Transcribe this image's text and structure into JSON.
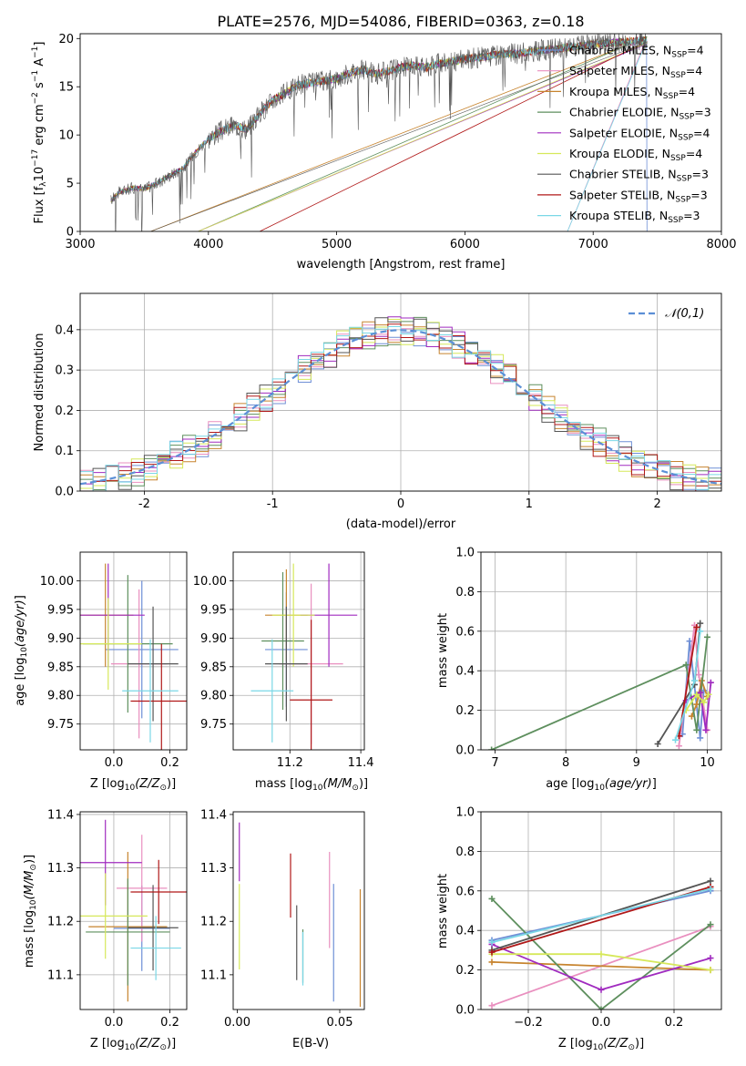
{
  "figure": {
    "title": "PLATE=2576, MJD=54086, FIBERID=0363, z=0.18"
  },
  "chart_data": [
    {
      "id": "spectrum",
      "type": "line",
      "xlabel": "wavelength [Angstrom, rest frame]",
      "ylabel": "Flux [f_λ 10^-17 erg cm^-2 s^-1 A^-1]",
      "xlim": [
        3000,
        8000
      ],
      "ylim": [
        0,
        20.5
      ],
      "xticks": [
        3000,
        4000,
        5000,
        6000,
        7000,
        8000
      ],
      "yticks": [
        0,
        5,
        10,
        15,
        20
      ],
      "grid": false,
      "legend_position": "right",
      "data_range_x": [
        3240,
        7420
      ],
      "curve": {
        "x": [
          3240,
          3300,
          3400,
          3500,
          3600,
          3700,
          3800,
          3900,
          4000,
          4100,
          4200,
          4300,
          4400,
          4500,
          4600,
          4700,
          4800,
          4900,
          5000,
          5100,
          5200,
          5300,
          5400,
          5500,
          5600,
          5700,
          5800,
          5900,
          6000,
          6100,
          6200,
          6300,
          6400,
          6500,
          6600,
          6700,
          6800,
          6900,
          7000,
          7100,
          7200,
          7300,
          7400
        ],
        "y": [
          3.2,
          4.0,
          4.5,
          4.4,
          5.0,
          5.8,
          6.5,
          8.2,
          9.6,
          10.4,
          11.0,
          10.6,
          12.2,
          13.6,
          14.3,
          15.2,
          15.4,
          15.6,
          15.8,
          16.4,
          16.8,
          16.3,
          16.6,
          17.0,
          17.2,
          17.0,
          17.4,
          17.6,
          17.9,
          18.0,
          18.2,
          18.4,
          18.4,
          18.6,
          18.8,
          18.9,
          19.1,
          19.2,
          19.4,
          19.5,
          19.6,
          19.7,
          19.8
        ]
      },
      "series": [
        {
          "name": "Chabrier MILES, N_SSP=4",
          "color": "#6f8fd6",
          "drop": [
            7420,
            0
          ]
        },
        {
          "name": "Salpeter MILES, N_SSP=4",
          "color": "#e98fbf",
          "drop": [
            6800,
            0
          ]
        },
        {
          "name": "Kroupa MILES, N_SSP=4",
          "color": "#c7842e",
          "drop": [
            3550,
            0
          ]
        },
        {
          "name": "Chabrier ELODIE, N_SSP=3",
          "color": "#5e8f5e",
          "drop": [
            3920,
            0
          ]
        },
        {
          "name": "Salpeter ELODIE, N_SSP=4",
          "color": "#a02bbf",
          "drop": [
            3920,
            0
          ]
        },
        {
          "name": "Kroupa ELODIE, N_SSP=4",
          "color": "#d6e85a",
          "drop": [
            3920,
            0
          ]
        },
        {
          "name": "Chabrier STELIB, N_SSP=3",
          "color": "#555555",
          "drop": [
            3550,
            0
          ]
        },
        {
          "name": "Salpeter STELIB, N_SSP=3",
          "color": "#b01818",
          "drop": [
            4400,
            0
          ]
        },
        {
          "name": "Kroupa STELIB, N_SSP=3",
          "color": "#7ad7e6",
          "drop": [
            6800,
            0
          ]
        }
      ]
    },
    {
      "id": "residuals",
      "type": "histogram",
      "xlabel": "(data-model)/error",
      "ylabel": "Normed distribution",
      "xlim": [
        -2.5,
        2.5
      ],
      "ylim": [
        0,
        0.49
      ],
      "xticks": [
        -2,
        -1,
        0,
        1,
        2
      ],
      "yticks": [
        0.0,
        0.1,
        0.2,
        0.3,
        0.4
      ],
      "grid": true,
      "legend_position": "top-right",
      "bins_from": -2.5,
      "bin_width": 0.1,
      "reference": {
        "name": "𝒩(0,1)",
        "mu": 0,
        "sigma": 1,
        "color": "#5b8fd6"
      },
      "series": [
        {
          "color": "#6f8fd6",
          "seed": 1
        },
        {
          "color": "#e98fbf",
          "seed": 2
        },
        {
          "color": "#c7842e",
          "seed": 3
        },
        {
          "color": "#5e8f5e",
          "seed": 4
        },
        {
          "color": "#a02bbf",
          "seed": 5
        },
        {
          "color": "#d6e85a",
          "seed": 6
        },
        {
          "color": "#555555",
          "seed": 7
        },
        {
          "color": "#b01818",
          "seed": 8
        },
        {
          "color": "#7ad7e6",
          "seed": 9
        }
      ]
    },
    {
      "id": "age-vs-Z",
      "type": "scatter",
      "xlabel": "Z [log10(Z/Z⊙)]",
      "ylabel": "age  [log10(age/yr)]",
      "xlim": [
        -0.12,
        0.26
      ],
      "ylim": [
        9.705,
        10.05
      ],
      "xticks": [
        0.0,
        0.2
      ],
      "xticklabels": [
        "0.0",
        "0.2"
      ],
      "yticks": [
        9.75,
        9.8,
        9.85,
        9.9,
        9.95,
        10.0
      ],
      "yticklabels": [
        "9.75",
        "9.80",
        "9.85",
        "9.90",
        "9.95",
        "10.00"
      ],
      "grid": true,
      "points": [
        {
          "x": 0.1,
          "y": 9.88,
          "xerr": 0.13,
          "yerr": 0.12,
          "color": "#6f8fd6"
        },
        {
          "x": 0.09,
          "y": 9.855,
          "xerr": 0.1,
          "yerr": 0.13,
          "color": "#e98fbf"
        },
        {
          "x": -0.03,
          "y": 9.94,
          "xerr": 0.1,
          "yerr": 0.09,
          "color": "#c7842e"
        },
        {
          "x": 0.05,
          "y": 9.89,
          "xerr": 0.16,
          "yerr": 0.12,
          "color": "#5e8f5e"
        },
        {
          "x": -0.02,
          "y": 9.94,
          "xerr": 0.13,
          "yerr": 0.09,
          "color": "#a02bbf"
        },
        {
          "x": -0.02,
          "y": 9.89,
          "xerr": 0.12,
          "yerr": 0.08,
          "color": "#d6e85a"
        },
        {
          "x": 0.14,
          "y": 9.855,
          "xerr": 0.09,
          "yerr": 0.1,
          "color": "#555555"
        },
        {
          "x": 0.17,
          "y": 9.79,
          "xerr": 0.11,
          "yerr": 0.1,
          "color": "#b01818"
        },
        {
          "x": 0.13,
          "y": 9.808,
          "xerr": 0.1,
          "yerr": 0.09,
          "color": "#7ad7e6"
        }
      ]
    },
    {
      "id": "age-vs-mass",
      "type": "scatter",
      "xlabel": "mass [log10(M/M⊙)]",
      "ylabel": "",
      "xlim": [
        11.04,
        11.41
      ],
      "ylim": [
        9.705,
        10.05
      ],
      "xticks": [
        11.2,
        11.4
      ],
      "xticklabels": [
        "11.2",
        "11.4"
      ],
      "yticks": [
        9.75,
        9.8,
        9.85,
        9.9,
        9.95,
        10.0
      ],
      "yticklabels": [
        "9.75",
        "9.80",
        "9.85",
        "9.90",
        "9.95",
        "10.00"
      ],
      "grid": true,
      "points": [
        {
          "x": 11.19,
          "y": 9.88,
          "xerr": 0.06,
          "yerr": 0.1,
          "color": "#6f8fd6"
        },
        {
          "x": 11.26,
          "y": 9.855,
          "xerr": 0.09,
          "yerr": 0.14,
          "color": "#e98fbf"
        },
        {
          "x": 11.19,
          "y": 9.94,
          "xerr": 0.06,
          "yerr": 0.08,
          "color": "#c7842e"
        },
        {
          "x": 11.18,
          "y": 9.895,
          "xerr": 0.06,
          "yerr": 0.12,
          "color": "#5e8f5e"
        },
        {
          "x": 11.31,
          "y": 9.94,
          "xerr": 0.08,
          "yerr": 0.09,
          "color": "#a02bbf"
        },
        {
          "x": 11.21,
          "y": 9.94,
          "xerr": 0.06,
          "yerr": 0.09,
          "color": "#d6e85a"
        },
        {
          "x": 11.19,
          "y": 9.855,
          "xerr": 0.06,
          "yerr": 0.1,
          "color": "#555555"
        },
        {
          "x": 11.26,
          "y": 9.792,
          "xerr": 0.06,
          "yerr": 0.14,
          "color": "#b01818"
        },
        {
          "x": 11.15,
          "y": 9.808,
          "xerr": 0.06,
          "yerr": 0.09,
          "color": "#7ad7e6"
        }
      ]
    },
    {
      "id": "weight-vs-age",
      "type": "line",
      "xlabel": "age  [log10(age/yr)]",
      "ylabel": "mass weight",
      "xlim": [
        6.8,
        10.2
      ],
      "ylim": [
        0,
        1.0
      ],
      "xticks": [
        7,
        8,
        9,
        10
      ],
      "xticklabels": [
        "7",
        "8",
        "9",
        "10"
      ],
      "yticks": [
        0.0,
        0.2,
        0.4,
        0.6,
        0.8,
        1.0
      ],
      "yticklabels": [
        "0.0",
        "0.2",
        "0.4",
        "0.6",
        "0.8",
        "1.0"
      ],
      "grid": true,
      "series": [
        {
          "color": "#6f8fd6",
          "x": [
            9.65,
            9.75,
            9.9,
            9.95
          ],
          "y": [
            0.08,
            0.55,
            0.06,
            0.3
          ]
        },
        {
          "color": "#e98fbf",
          "x": [
            9.6,
            9.82,
            9.88,
            10.0
          ],
          "y": [
            0.02,
            0.63,
            0.38,
            0.1
          ]
        },
        {
          "color": "#c7842e",
          "x": [
            9.78,
            9.85,
            9.92,
            10.0
          ],
          "y": [
            0.17,
            0.23,
            0.35,
            0.27
          ]
        },
        {
          "color": "#5e8f5e",
          "x": [
            6.95,
            9.7,
            9.85,
            10.0
          ],
          "y": [
            0.0,
            0.43,
            0.1,
            0.57
          ]
        },
        {
          "color": "#a02bbf",
          "x": [
            9.7,
            9.9,
            9.98,
            10.05
          ],
          "y": [
            0.25,
            0.29,
            0.1,
            0.34
          ]
        },
        {
          "color": "#d6e85a",
          "x": [
            9.7,
            9.85,
            9.95,
            10.02
          ],
          "y": [
            0.2,
            0.28,
            0.24,
            0.28
          ]
        },
        {
          "color": "#555555",
          "x": [
            9.3,
            9.82,
            9.9
          ],
          "y": [
            0.03,
            0.33,
            0.64
          ]
        },
        {
          "color": "#b01818",
          "x": [
            9.6,
            9.85
          ],
          "y": [
            0.07,
            0.62
          ]
        },
        {
          "color": "#7ad7e6",
          "x": [
            9.55,
            9.82,
            9.9
          ],
          "y": [
            0.05,
            0.35,
            0.6
          ]
        }
      ]
    },
    {
      "id": "mass-vs-Z",
      "type": "scatter",
      "xlabel": "Z [log10(Z/Z⊙)]",
      "ylabel": "mass [log10(M/M⊙)]",
      "xlim": [
        -0.12,
        0.26
      ],
      "ylim": [
        11.035,
        11.405
      ],
      "xticks": [
        0.0,
        0.2
      ],
      "xticklabels": [
        "0.0",
        "0.2"
      ],
      "yticks": [
        11.1,
        11.2,
        11.3,
        11.4
      ],
      "yticklabels": [
        "11.1",
        "11.2",
        "11.3",
        "11.4"
      ],
      "grid": true,
      "points": [
        {
          "x": 0.1,
          "y": 11.187,
          "xerr": 0.1,
          "yerr": 0.08,
          "color": "#6f8fd6"
        },
        {
          "x": 0.1,
          "y": 11.262,
          "xerr": 0.09,
          "yerr": 0.1,
          "color": "#e98fbf"
        },
        {
          "x": 0.05,
          "y": 11.19,
          "xerr": 0.14,
          "yerr": 0.14,
          "color": "#c7842e"
        },
        {
          "x": 0.05,
          "y": 11.18,
          "xerr": 0.15,
          "yerr": 0.1,
          "color": "#5e8f5e"
        },
        {
          "x": -0.03,
          "y": 11.31,
          "xerr": 0.13,
          "yerr": 0.08,
          "color": "#a02bbf"
        },
        {
          "x": -0.03,
          "y": 11.21,
          "xerr": 0.15,
          "yerr": 0.08,
          "color": "#d6e85a"
        },
        {
          "x": 0.14,
          "y": 11.188,
          "xerr": 0.09,
          "yerr": 0.08,
          "color": "#555555"
        },
        {
          "x": 0.16,
          "y": 11.255,
          "xerr": 0.1,
          "yerr": 0.06,
          "color": "#b01818"
        },
        {
          "x": 0.15,
          "y": 11.15,
          "xerr": 0.09,
          "yerr": 0.06,
          "color": "#7ad7e6"
        }
      ]
    },
    {
      "id": "mass-vs-EBV",
      "type": "scatter",
      "xlabel": "E(B-V)",
      "ylabel": "",
      "xlim": [
        -0.002,
        0.062
      ],
      "ylim": [
        11.035,
        11.405
      ],
      "xticks": [
        0.0,
        0.05
      ],
      "xticklabels": [
        "0.00",
        "0.05"
      ],
      "yticks": [
        11.1,
        11.2,
        11.3,
        11.4
      ],
      "yticklabels": [
        "11.1",
        "11.2",
        "11.3",
        "11.4"
      ],
      "grid": false,
      "points": [
        {
          "x": 0.047,
          "y": 11.16,
          "yerr": 0.11,
          "color": "#6f8fd6"
        },
        {
          "x": 0.045,
          "y": 11.24,
          "yerr": 0.09,
          "color": "#e98fbf"
        },
        {
          "x": 0.06,
          "y": 11.15,
          "yerr": 0.11,
          "color": "#c7842e"
        },
        {
          "x": 0.032,
          "y": 11.135,
          "yerr": 0.05,
          "color": "#5e8f5e"
        },
        {
          "x": 0.001,
          "y": 11.33,
          "yerr": 0.055,
          "color": "#a02bbf"
        },
        {
          "x": 0.001,
          "y": 11.19,
          "yerr": 0.08,
          "color": "#d6e85a"
        },
        {
          "x": 0.029,
          "y": 11.16,
          "yerr": 0.07,
          "color": "#555555"
        },
        {
          "x": 0.026,
          "y": 11.267,
          "yerr": 0.06,
          "color": "#b01818"
        },
        {
          "x": 0.032,
          "y": 11.13,
          "yerr": 0.05,
          "color": "#7ad7e6"
        }
      ]
    },
    {
      "id": "weight-vs-Z",
      "type": "line",
      "xlabel": "Z [log10(Z/Z⊙)]",
      "ylabel": "mass weight",
      "xlim": [
        -0.33,
        0.33
      ],
      "ylim": [
        0,
        1.0
      ],
      "xticks": [
        -0.2,
        0.0,
        0.2
      ],
      "xticklabels": [
        "−0.2",
        "0.0",
        "0.2"
      ],
      "yticks": [
        0.0,
        0.2,
        0.4,
        0.6,
        0.8,
        1.0
      ],
      "yticklabels": [
        "0.0",
        "0.2",
        "0.4",
        "0.6",
        "0.8",
        "1.0"
      ],
      "grid": true,
      "series": [
        {
          "color": "#6f8fd6",
          "x": [
            -0.3,
            0.3
          ],
          "y": [
            0.35,
            0.6
          ]
        },
        {
          "color": "#e98fbf",
          "x": [
            -0.3,
            0.3
          ],
          "y": [
            0.02,
            0.42
          ]
        },
        {
          "color": "#c7842e",
          "x": [
            -0.3,
            0.3
          ],
          "y": [
            0.24,
            0.2
          ]
        },
        {
          "color": "#5e8f5e",
          "x": [
            -0.3,
            0.0,
            0.3
          ],
          "y": [
            0.56,
            0.0,
            0.43
          ]
        },
        {
          "color": "#a02bbf",
          "x": [
            -0.3,
            0.0,
            0.3
          ],
          "y": [
            0.33,
            0.1,
            0.26
          ]
        },
        {
          "color": "#d6e85a",
          "x": [
            -0.3,
            0.0,
            0.3
          ],
          "y": [
            0.28,
            0.28,
            0.2
          ]
        },
        {
          "color": "#555555",
          "x": [
            -0.3,
            0.3
          ],
          "y": [
            0.3,
            0.65
          ]
        },
        {
          "color": "#b01818",
          "x": [
            -0.3,
            0.3
          ],
          "y": [
            0.29,
            0.62
          ]
        },
        {
          "color": "#7ad7e6",
          "x": [
            -0.3,
            0.3
          ],
          "y": [
            0.34,
            0.61
          ]
        }
      ]
    }
  ]
}
